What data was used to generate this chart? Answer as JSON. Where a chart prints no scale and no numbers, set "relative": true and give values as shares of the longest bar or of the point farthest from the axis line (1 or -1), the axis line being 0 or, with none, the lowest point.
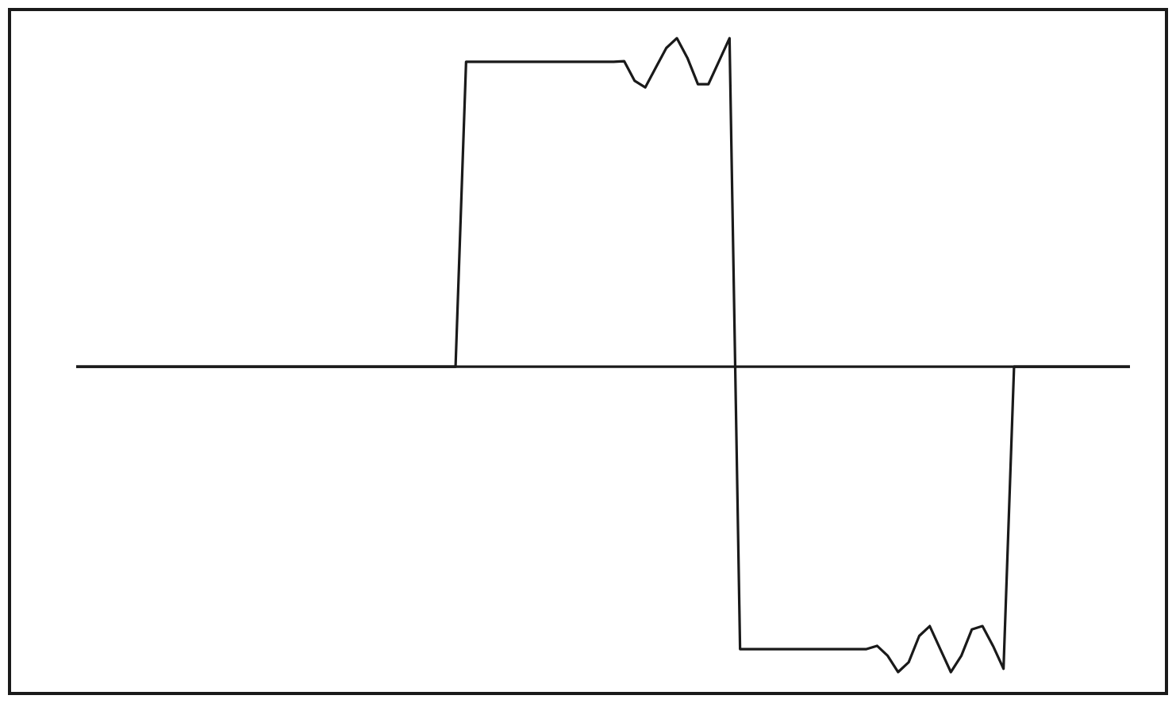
{
  "chart_data": {
    "type": "line",
    "relative": true,
    "tick_labels": false,
    "marker": "none",
    "line_style": "solid",
    "grid": false,
    "legend": false,
    "categories": [
      null,
      null,
      null,
      null,
      null,
      null,
      null,
      null,
      null,
      null,
      null,
      null,
      null,
      null,
      null,
      null,
      null,
      null,
      null,
      null,
      null,
      null,
      null,
      null,
      null,
      null,
      null,
      null,
      null,
      null,
      null,
      null,
      null,
      null,
      null,
      null,
      null,
      null,
      null,
      null,
      null,
      null,
      null,
      null,
      null,
      null,
      null,
      null,
      null,
      null,
      null,
      null,
      null,
      null,
      null,
      null,
      null,
      null,
      null,
      null,
      null,
      null,
      null,
      null,
      null,
      null,
      null,
      null,
      null,
      null,
      null,
      null,
      null,
      null,
      null,
      null,
      null,
      null,
      null,
      null,
      null,
      null,
      null,
      null,
      null,
      null,
      null,
      null,
      null,
      null,
      null,
      null,
      null,
      null,
      null,
      null,
      null,
      null,
      null,
      null,
      null
    ],
    "series": [
      {
        "color": "#1a1a1a",
        "values": [
          0,
          0,
          0,
          0,
          0,
          0,
          0,
          0,
          0,
          0,
          0,
          0,
          0,
          0,
          0,
          0,
          0,
          0,
          0,
          0,
          0,
          0,
          0,
          0,
          0,
          0,
          0,
          0,
          0,
          0,
          0,
          0,
          0,
          0,
          0,
          0,
          0,
          0.928,
          0.928,
          0.928,
          0.928,
          0.928,
          0.928,
          0.928,
          0.928,
          0.928,
          0.928,
          0.928,
          0.928,
          0.928,
          0.928,
          0.928,
          0.93,
          0.87,
          0.85,
          0.91,
          0.97,
          1,
          0.94,
          0.86,
          0.86,
          0.93,
          1,
          -0.86,
          -0.86,
          -0.86,
          -0.86,
          -0.86,
          -0.86,
          -0.86,
          -0.86,
          -0.86,
          -0.86,
          -0.86,
          -0.86,
          -0.86,
          -0.85,
          -0.88,
          -0.93,
          -0.9,
          -0.82,
          -0.79,
          -0.86,
          -0.93,
          -0.88,
          -0.8,
          -0.79,
          -0.85,
          -0.92,
          0,
          0,
          0,
          0,
          0,
          0,
          0,
          0,
          0,
          0,
          0,
          0
        ]
      }
    ]
  }
}
